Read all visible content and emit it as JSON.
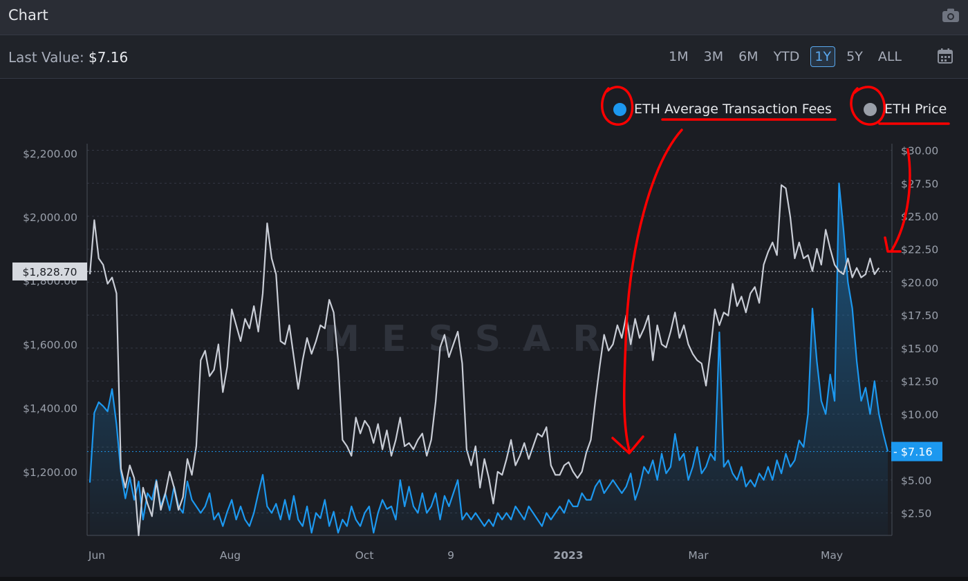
{
  "header": {
    "title": "Chart",
    "camera_icon": "camera-icon"
  },
  "toolbar": {
    "last_value_label": "Last Value:",
    "last_value": "$7.16",
    "ranges": [
      "1M",
      "3M",
      "6M",
      "YTD",
      "1Y",
      "5Y",
      "ALL"
    ],
    "active_range": "1Y",
    "calendar_icon": "calendar-icon"
  },
  "colors": {
    "fees": "#1c98ef",
    "price": "#c9cdd6",
    "background": "#1b1d23",
    "annotation": "#ff0000"
  },
  "chart_data": {
    "type": "line",
    "watermark": "MESSARI",
    "x_ticks": [
      "Jun",
      "Aug",
      "Oct",
      "9",
      "2023",
      "Mar",
      "May"
    ],
    "left_axis": {
      "ticks": [
        "$1,200.00",
        "$1,400.00",
        "$1,600.00",
        "$1,800.00",
        "$2,000.00",
        "$2,200.00"
      ],
      "range": [
        1000,
        2230
      ],
      "crosshair_label": "$1,828.70",
      "crosshair_value": 1828.7
    },
    "right_axis": {
      "ticks": [
        "$2.50",
        "$5.00",
        "$7.50",
        "$10.00",
        "$12.50",
        "$15.00",
        "$17.50",
        "$20.00",
        "$22.50",
        "$25.00",
        "$27.50",
        "$30.00"
      ],
      "range": [
        0.8,
        30.5
      ],
      "last_label": "$7.16",
      "last_value": 7.16
    },
    "series": [
      {
        "name": "ETH Average Transaction Fees",
        "axis": "right",
        "color": "#1c98ef",
        "values": [
          4.8,
          10.1,
          10.9,
          10.6,
          10.2,
          11.9,
          9.2,
          5.6,
          3.6,
          5.2,
          3.5,
          4.9,
          2.0,
          4.0,
          3.5,
          5.0,
          3.0,
          4.0,
          2.7,
          4.5,
          3.0,
          2.5,
          4.9,
          3.5,
          3.0,
          2.5,
          3.0,
          4.0,
          2.0,
          2.5,
          1.5,
          2.6,
          3.5,
          2.0,
          3.0,
          2.0,
          1.5,
          2.5,
          4.0,
          5.4,
          3.0,
          2.5,
          3.2,
          2.0,
          3.5,
          2.0,
          3.8,
          2.0,
          1.5,
          3.0,
          1.0,
          2.5,
          2.1,
          3.5,
          1.5,
          2.6,
          1.0,
          2.0,
          1.5,
          3.0,
          2.0,
          1.5,
          2.5,
          3.0,
          1.0,
          2.5,
          3.5,
          2.8,
          3.0,
          2.0,
          5.0,
          3.0,
          4.5,
          3.0,
          2.5,
          4.0,
          2.5,
          3.0,
          4.0,
          2.0,
          3.8,
          3.0,
          4.0,
          5.0,
          2.0,
          2.5,
          2.0,
          2.5,
          2.0,
          1.5,
          2.0,
          1.5,
          2.5,
          2.0,
          2.5,
          2.0,
          3.0,
          2.5,
          2.0,
          3.0,
          2.5,
          2.0,
          1.5,
          2.5,
          2.0,
          2.5,
          3.0,
          2.5,
          3.5,
          3.0,
          3.0,
          4.0,
          3.5,
          3.5,
          4.5,
          5.0,
          4.0,
          4.5,
          5.0,
          4.5,
          4.0,
          4.5,
          5.5,
          3.5,
          4.5,
          6.0,
          5.5,
          6.5,
          5.0,
          7.0,
          5.5,
          6.0,
          8.5,
          6.5,
          7.0,
          5.0,
          6.0,
          7.5,
          5.5,
          6.0,
          7.0,
          6.5,
          16.2,
          6.0,
          6.5,
          5.5,
          5.0,
          6.0,
          4.5,
          5.0,
          4.5,
          5.5,
          5.0,
          6.0,
          5.0,
          6.5,
          5.5,
          7.0,
          6.0,
          6.5,
          8.0,
          7.5,
          10.0,
          18.0,
          14.0,
          11.0,
          10.0,
          13.0,
          11.0,
          27.5,
          24.0,
          20.0,
          18.0,
          14.0,
          11.0,
          12.0,
          10.0,
          12.5,
          10.0,
          8.5,
          7.16
        ]
      },
      {
        "name": "ETH Price",
        "axis": "left",
        "color": "#c9cdd6",
        "values": [
          1820,
          1990,
          1870,
          1850,
          1790,
          1810,
          1760,
          1210,
          1150,
          1220,
          1180,
          1000,
          1150,
          1100,
          1060,
          1170,
          1080,
          1130,
          1200,
          1150,
          1080,
          1120,
          1240,
          1190,
          1280,
          1550,
          1580,
          1500,
          1520,
          1600,
          1450,
          1530,
          1710,
          1660,
          1610,
          1680,
          1650,
          1720,
          1640,
          1760,
          1980,
          1870,
          1820,
          1610,
          1600,
          1660,
          1560,
          1460,
          1550,
          1620,
          1570,
          1610,
          1660,
          1650,
          1740,
          1700,
          1550,
          1300,
          1280,
          1250,
          1370,
          1320,
          1360,
          1340,
          1290,
          1350,
          1270,
          1330,
          1250,
          1300,
          1370,
          1280,
          1290,
          1270,
          1300,
          1320,
          1250,
          1300,
          1420,
          1590,
          1630,
          1560,
          1600,
          1640,
          1540,
          1270,
          1220,
          1280,
          1150,
          1240,
          1180,
          1100,
          1200,
          1190,
          1240,
          1300,
          1220,
          1250,
          1290,
          1240,
          1280,
          1320,
          1310,
          1340,
          1220,
          1190,
          1190,
          1220,
          1230,
          1200,
          1180,
          1200,
          1260,
          1300,
          1420,
          1530,
          1630,
          1580,
          1600,
          1660,
          1620,
          1690,
          1600,
          1680,
          1620,
          1650,
          1690,
          1550,
          1660,
          1600,
          1590,
          1640,
          1700,
          1620,
          1660,
          1600,
          1570,
          1550,
          1540,
          1470,
          1580,
          1710,
          1660,
          1700,
          1690,
          1790,
          1720,
          1750,
          1700,
          1760,
          1780,
          1730,
          1850,
          1890,
          1920,
          1880,
          2100,
          2090,
          2000,
          1870,
          1920,
          1870,
          1880,
          1830,
          1900,
          1850,
          1960,
          1900,
          1850,
          1830,
          1820,
          1870,
          1810,
          1840,
          1810,
          1820,
          1870,
          1820,
          1840
        ]
      }
    ]
  }
}
